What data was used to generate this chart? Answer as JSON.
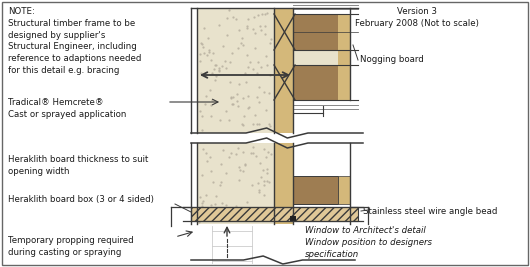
{
  "fig_width": 5.3,
  "fig_height": 2.67,
  "dpi": 100,
  "bg_color": "#ffffff",
  "note_text": "NOTE:\nStructural timber frame to be\ndesigned by supplier's\nStructural Engineer, including\nreference to adaptions needed\nfor this detail e.g. bracing",
  "tradical_text": "Tradical® Hemcrete®\nCast or sprayed application",
  "heraklith_thick_text": "Heraklith board thickness to suit\nopening width",
  "heraklith_box_text": "Heraklith board box (3 or 4 sided)",
  "temp_prop_text": "Temporary propping required\nduring casting or spraying",
  "nogging_text": "Nogging board",
  "stainless_text": "Stainless steel wire angle bead",
  "window_text": "Window to Architect's detail\nWindow position to designers\nspecification",
  "version_text": "Version 3\nFebruary 2008 (Not to scale)",
  "hemp_color": "#e8e2cc",
  "timber_light": "#d4b87a",
  "timber_dark": "#9e7d52",
  "hatch_color": "#e0c898",
  "line_color": "#3a3a3a",
  "dot_color": "#b8b0a0"
}
